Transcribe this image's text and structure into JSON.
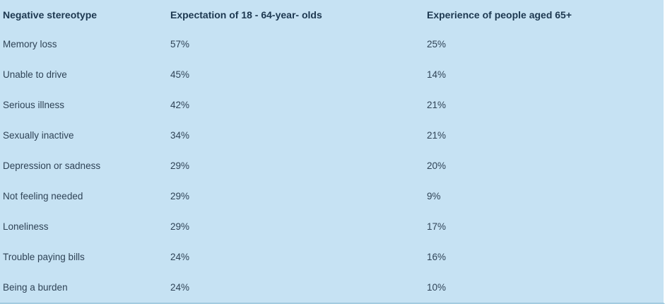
{
  "table": {
    "columns": [
      "Negative stereotype",
      "Expectation of 18 - 64-year- olds",
      "Experience of people aged 65+"
    ],
    "rows": [
      {
        "label": "Memory loss",
        "expectation": "57%",
        "experience": "25%"
      },
      {
        "label": "Unable to drive",
        "expectation": "45%",
        "experience": "14%"
      },
      {
        "label": "Serious illness",
        "expectation": "42%",
        "experience": "21%"
      },
      {
        "label": "Sexually inactive",
        "expectation": "34%",
        "experience": "21%"
      },
      {
        "label": "Depression or sadness",
        "expectation": "29%",
        "experience": "20%"
      },
      {
        "label": "Not feeling needed",
        "expectation": "29%",
        "experience": "9%"
      },
      {
        "label": "Loneliness",
        "expectation": "29%",
        "experience": "17%"
      },
      {
        "label": "Trouble paying bills",
        "expectation": "24%",
        "experience": "16%"
      },
      {
        "label": "Being a burden",
        "expectation": "24%",
        "experience": "10%"
      }
    ]
  },
  "chart_data": {
    "type": "table",
    "title": "",
    "categories": [
      "Memory loss",
      "Unable to drive",
      "Serious illness",
      "Sexually inactive",
      "Depression or sadness",
      "Not feeling needed",
      "Loneliness",
      "Trouble paying bills",
      "Being a burden"
    ],
    "series": [
      {
        "name": "Expectation of 18 - 64-year- olds",
        "values": [
          57,
          45,
          42,
          34,
          29,
          29,
          29,
          24,
          24
        ]
      },
      {
        "name": "Experience of people aged 65+",
        "values": [
          25,
          14,
          21,
          21,
          20,
          9,
          17,
          16,
          10
        ]
      }
    ],
    "value_unit": "%"
  },
  "colors": {
    "bg": "#c6e2f3",
    "header_text": "#1d3850",
    "body_text": "#2f4356",
    "border_bottom": "#a3cbe0",
    "edge": "#ffffff"
  }
}
